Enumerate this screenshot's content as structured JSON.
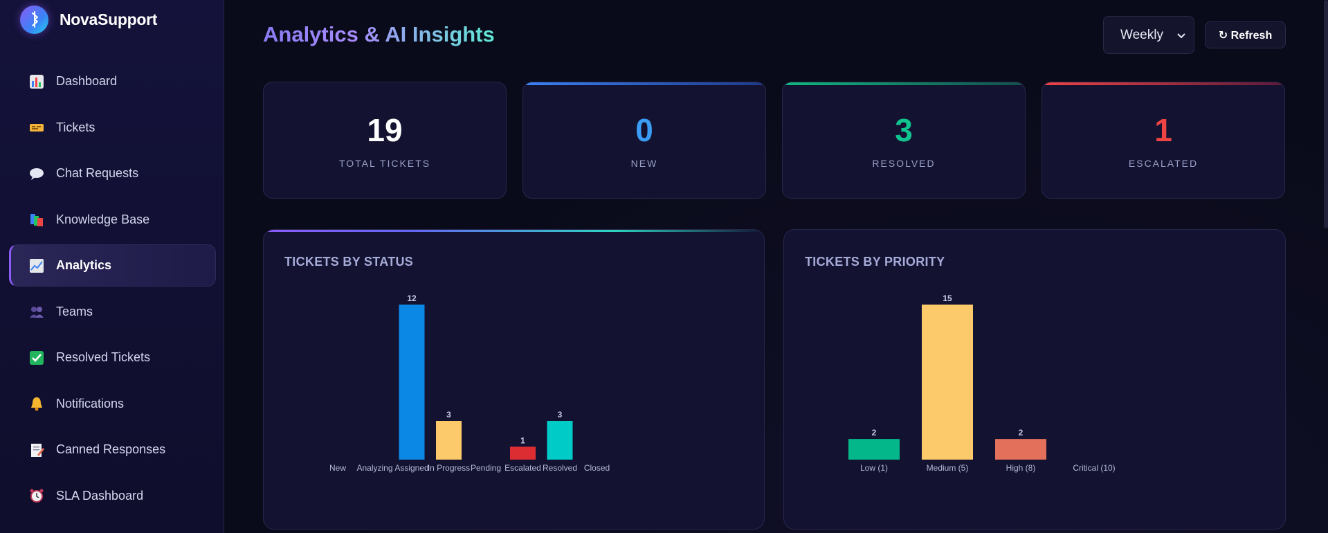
{
  "brand": {
    "name": "NovaSupport"
  },
  "sidebar": {
    "items": [
      {
        "label": "Dashboard",
        "icon": "bar-chart-icon",
        "active": false
      },
      {
        "label": "Tickets",
        "icon": "ticket-icon",
        "active": false
      },
      {
        "label": "Chat Requests",
        "icon": "speech-bubble-icon",
        "active": false
      },
      {
        "label": "Knowledge Base",
        "icon": "books-icon",
        "active": false
      },
      {
        "label": "Analytics",
        "icon": "trend-chart-icon",
        "active": true
      },
      {
        "label": "Teams",
        "icon": "users-icon",
        "active": false
      },
      {
        "label": "Resolved Tickets",
        "icon": "check-box-icon",
        "active": false
      },
      {
        "label": "Notifications",
        "icon": "bell-icon",
        "active": false
      },
      {
        "label": "Canned Responses",
        "icon": "memo-icon",
        "active": false
      },
      {
        "label": "SLA Dashboard",
        "icon": "alarm-clock-icon",
        "active": false
      }
    ]
  },
  "header": {
    "title": "Analytics & AI Insights",
    "period": {
      "selected": "Weekly"
    },
    "refresh_label": "↻ Refresh"
  },
  "stats": [
    {
      "value": "19",
      "label": "TOTAL TICKETS",
      "color": "#ffffff"
    },
    {
      "value": "0",
      "label": "NEW",
      "color": "#3b9cf5"
    },
    {
      "value": "3",
      "label": "RESOLVED",
      "color": "#10c48f"
    },
    {
      "value": "1",
      "label": "ESCALATED",
      "color": "#ef4444"
    }
  ],
  "chart_data": [
    {
      "type": "bar",
      "title": "TICKETS BY STATUS",
      "categories": [
        "New",
        "Analyzing",
        "Assigned",
        "In Progress",
        "Pending",
        "Escalated",
        "Resolved",
        "Closed"
      ],
      "values": [
        0,
        0,
        12,
        3,
        0,
        1,
        3,
        0
      ],
      "colors": [
        "#0b87e6",
        "#0b87e6",
        "#0b87e6",
        "#fcc96b",
        "#fcc96b",
        "#dc2e32",
        "#00cbc6",
        "#00cbc6"
      ],
      "ylim": [
        0,
        12
      ]
    },
    {
      "type": "bar",
      "title": "TICKETS BY PRIORITY",
      "categories": [
        "Low (1)",
        "Medium (5)",
        "High (8)",
        "Critical (10)"
      ],
      "values": [
        2,
        15,
        2,
        0
      ],
      "colors": [
        "#04b78a",
        "#fcc96b",
        "#e3705a",
        "#e3705a"
      ],
      "ylim": [
        0,
        15
      ]
    }
  ]
}
